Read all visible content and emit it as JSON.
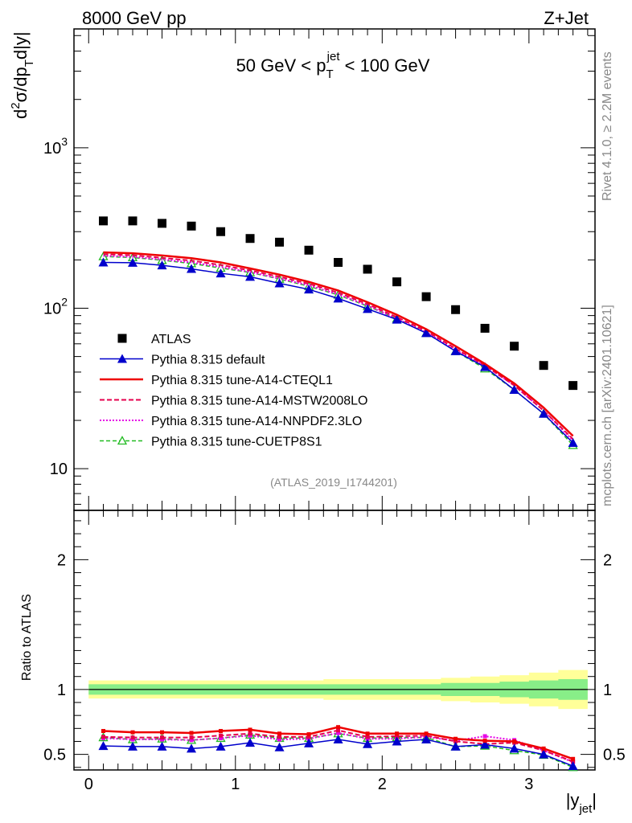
{
  "header": {
    "left": "8000 GeV pp",
    "right": "Z+Jet",
    "side_top": "Rivet 4.1.0, ≥ 2.2M events",
    "side_bottom": "mcplots.cern.ch [arXiv:2401.10621]",
    "analysis_tag": "(ATLAS_2019_I1744201)"
  },
  "colors": {
    "atlas": "#000000",
    "default": "#0000cc",
    "cteql1": "#ee0000",
    "mstw": "#e6004d",
    "nnpdf": "#e600e6",
    "cuetp8s1": "#22bb22",
    "band_outer": "#ffff99",
    "band_inner": "#88ee88"
  },
  "chart_data": [
    {
      "type": "line",
      "title": "50 GeV < p_T^jet < 100 GeV",
      "title_parts": {
        "pre": "50 GeV < p",
        "sub": "T",
        "sup": "jet",
        "post": " < 100 GeV"
      },
      "ylabel": "d²σ/dp_T d|y|",
      "ylabel_parts": {
        "d": "d",
        "sup2": "2",
        "sigma": "σ/dp",
        "subT": "T",
        "rest": "d|y|"
      },
      "yscale": "log",
      "ylim": [
        5.5,
        5500
      ],
      "xlim": [
        -0.1,
        3.45
      ],
      "y_ticks": [
        {
          "value": 10,
          "label": "10",
          "sup": ""
        },
        {
          "value": 100,
          "label": "10",
          "sup": "2"
        },
        {
          "value": 1000,
          "label": "10",
          "sup": "3"
        }
      ],
      "x": [
        0.1,
        0.3,
        0.5,
        0.7,
        0.9,
        1.1,
        1.3,
        1.5,
        1.7,
        1.9,
        2.1,
        2.3,
        2.5,
        2.7,
        2.9,
        3.1,
        3.3
      ],
      "legend": [
        {
          "key": "atlas",
          "label": "ATLAS"
        },
        {
          "key": "default",
          "label": "Pythia 8.315 default"
        },
        {
          "key": "cteql1",
          "label": "Pythia 8.315 tune-A14-CTEQL1"
        },
        {
          "key": "mstw",
          "label": "Pythia 8.315 tune-A14-MSTW2008LO"
        },
        {
          "key": "nnpdf",
          "label": "Pythia 8.315 tune-A14-NNPDF2.3LO"
        },
        {
          "key": "cuetp8s1",
          "label": "Pythia 8.315 tune-CUETP8S1"
        }
      ],
      "series": [
        {
          "key": "atlas",
          "name": "ATLAS",
          "values": [
            350,
            350,
            338,
            325,
            300,
            272,
            258,
            230,
            193,
            175,
            146,
            118,
            98,
            75,
            58,
            44,
            33
          ]
        },
        {
          "key": "default",
          "name": "Pythia 8.315 default",
          "values": [
            193,
            192,
            185,
            176,
            165,
            157,
            143,
            131,
            115,
            99,
            85,
            70,
            54,
            43,
            31,
            22,
            14.5
          ]
        },
        {
          "key": "cteql1",
          "name": "Pythia 8.315 tune-A14-CTEQL1",
          "values": [
            223,
            220,
            213,
            205,
            193,
            177,
            162,
            146,
            129,
            109,
            91,
            74,
            58,
            45,
            34,
            24,
            16
          ]
        },
        {
          "key": "mstw",
          "name": "Pythia 8.315 tune-A14-MSTW2008LO",
          "values": [
            217,
            214,
            206,
            198,
            186,
            172,
            157,
            142,
            125,
            106,
            88,
            72,
            56,
            44,
            33,
            23,
            15.3
          ]
        },
        {
          "key": "nnpdf",
          "name": "Pythia 8.315 tune-A14-NNPDF2.3LO",
          "values": [
            212,
            209,
            201,
            193,
            181,
            168,
            153,
            139,
            122,
            104,
            86,
            71,
            55,
            44,
            33,
            23,
            15
          ]
        },
        {
          "key": "cuetp8s1",
          "name": "Pythia 8.315 tune-CUETP8S1",
          "values": [
            210,
            207,
            199,
            190,
            178,
            167,
            152,
            137,
            121,
            103,
            86,
            70,
            54,
            42,
            31,
            22,
            14
          ]
        }
      ]
    },
    {
      "type": "line",
      "ylabel": "Ratio to ATLAS",
      "xlabel": "|y_jet|",
      "xlabel_parts": {
        "pre": "|y",
        "sub": "jet",
        "post": "|"
      },
      "ylim": [
        0.38,
        2.38
      ],
      "xlim": [
        -0.1,
        3.45
      ],
      "y_ticks": [
        0.5,
        1,
        2
      ],
      "y_tick_labels": [
        "0.5",
        "1",
        "2"
      ],
      "x_ticks": [
        0,
        1,
        2,
        3
      ],
      "x_tick_labels": [
        "0",
        "1",
        "2",
        "3"
      ],
      "x": [
        0.1,
        0.3,
        0.5,
        0.7,
        0.9,
        1.1,
        1.3,
        1.5,
        1.7,
        1.9,
        2.1,
        2.3,
        2.5,
        2.7,
        2.9,
        3.1,
        3.3
      ],
      "band_outer_halfwidth": [
        0.07,
        0.07,
        0.07,
        0.07,
        0.07,
        0.07,
        0.07,
        0.07,
        0.08,
        0.08,
        0.08,
        0.08,
        0.09,
        0.1,
        0.11,
        0.13,
        0.15
      ],
      "band_inner_halfwidth": [
        0.04,
        0.04,
        0.04,
        0.04,
        0.04,
        0.04,
        0.04,
        0.04,
        0.04,
        0.04,
        0.04,
        0.04,
        0.05,
        0.05,
        0.06,
        0.07,
        0.08
      ],
      "series": [
        {
          "key": "default",
          "name": "Pythia 8.315 default",
          "values": [
            0.565,
            0.56,
            0.56,
            0.545,
            0.56,
            0.59,
            0.555,
            0.585,
            0.615,
            0.58,
            0.6,
            0.615,
            0.56,
            0.575,
            0.545,
            0.5,
            0.41
          ]
        },
        {
          "key": "cteql1",
          "name": "Pythia 8.315 tune-A14-CTEQL1",
          "values": [
            0.68,
            0.67,
            0.67,
            0.665,
            0.68,
            0.69,
            0.66,
            0.655,
            0.71,
            0.66,
            0.66,
            0.66,
            0.62,
            0.605,
            0.6,
            0.545,
            0.465
          ]
        },
        {
          "key": "mstw",
          "name": "Pythia 8.315 tune-A14-MSTW2008LO",
          "values": [
            0.635,
            0.63,
            0.63,
            0.63,
            0.645,
            0.66,
            0.635,
            0.635,
            0.685,
            0.635,
            0.64,
            0.645,
            0.6,
            0.58,
            0.59,
            0.53,
            0.445
          ]
        },
        {
          "key": "nnpdf",
          "name": "Pythia 8.315 tune-A14-NNPDF2.3LO",
          "values": [
            0.625,
            0.615,
            0.615,
            0.61,
            0.625,
            0.645,
            0.615,
            0.62,
            0.665,
            0.62,
            0.62,
            0.635,
            0.605,
            0.64,
            0.61,
            0.53,
            0.44
          ]
        },
        {
          "key": "cuetp8s1",
          "name": "Pythia 8.315 tune-CUETP8S1",
          "values": [
            0.63,
            0.615,
            0.62,
            0.61,
            0.625,
            0.65,
            0.625,
            0.625,
            0.66,
            0.625,
            0.63,
            0.63,
            0.56,
            0.565,
            0.53,
            0.495,
            0.4
          ]
        }
      ]
    }
  ]
}
